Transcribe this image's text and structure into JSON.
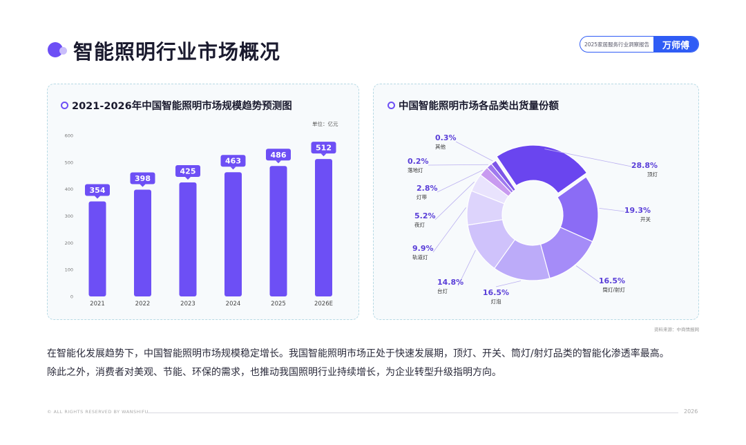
{
  "header": {
    "title": "智能照明行业市场概况",
    "report_name": "2025家居服务行业洞察报告",
    "brand": "万师傅"
  },
  "bar_panel": {
    "title": "2021-2026年中国智能照明市场规模趋势预测图",
    "unit": "单位：亿元"
  },
  "pie_panel": {
    "title": "中国智能照明市场各品类出货量份额"
  },
  "source_note": "资料来源：中商情报网",
  "body_text": [
    "在智能化发展趋势下，中国智能照明市场规模稳定增长。我国智能照明市场正处于快速发展期，顶灯、开关、筒灯/射灯品类的智能化渗透率最高。",
    "除此之外，消费者对美观、节能、环保的需求，也推动我国照明行业持续增长，为企业转型升级指明方向。"
  ],
  "footer": {
    "copyright": "© ALL RIGHTS RESERVED BY WANSHIFU",
    "year": "2026"
  },
  "colors": {
    "accent": "#6d4ff5",
    "brand_blue": "#2f5cf5"
  },
  "chart_data": [
    {
      "type": "bar",
      "title": "2021-2026年中国智能照明市场规模趋势预测图",
      "categories": [
        "2021",
        "2022",
        "2023",
        "2024",
        "2025",
        "2026E"
      ],
      "values": [
        354,
        398,
        425,
        463,
        486,
        512
      ],
      "ylim": [
        0,
        600
      ],
      "yticks": [
        0,
        100,
        200,
        300,
        400,
        500,
        600
      ],
      "unit": "单位：亿元",
      "grid": false,
      "legend": "none"
    },
    {
      "type": "pie",
      "donut": true,
      "title": "中国智能照明市场各品类出货量份额",
      "slices": [
        {
          "label": "顶灯",
          "value": 28.8,
          "display": "28.8%",
          "color": "#6a45ef"
        },
        {
          "label": "开关",
          "value": 19.3,
          "display": "19.3%",
          "color": "#8b6cf5"
        },
        {
          "label": "筒灯/射灯",
          "value": 16.5,
          "display": "16.5%",
          "color": "#a58cf8"
        },
        {
          "label": "灯泡",
          "value": 16.5,
          "display": "16.5%",
          "color": "#bcabf9"
        },
        {
          "label": "台灯",
          "value": 14.8,
          "display": "14.8%",
          "color": "#cfc2fb"
        },
        {
          "label": "轨道灯",
          "value": 9.9,
          "display": "9.9%",
          "color": "#ddd4fc"
        },
        {
          "label": "夜灯",
          "value": 5.2,
          "display": "5.2%",
          "color": "#e9e3fd"
        },
        {
          "label": "灯带",
          "value": 2.8,
          "display": "2.8%",
          "color": "#c89af0"
        },
        {
          "label": "落地灯",
          "value": 0.2,
          "display": "0.2%",
          "color": "#9f78ee"
        },
        {
          "label": "其他",
          "value": 0.3,
          "display": "0.3%",
          "color": "#7d55e8"
        }
      ],
      "legend": "callout labels"
    }
  ]
}
